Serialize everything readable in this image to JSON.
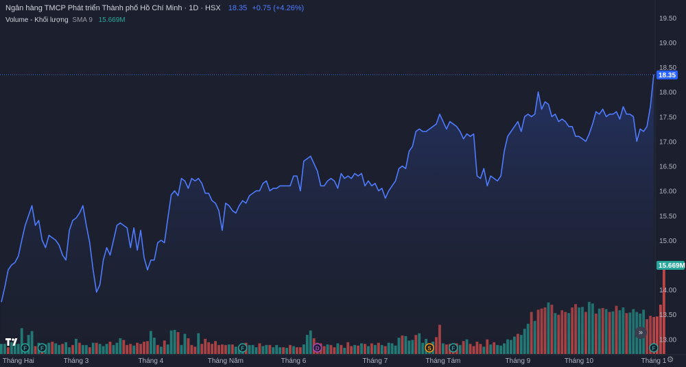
{
  "header": {
    "title": "Ngân hàng TMCP Phát triển Thành phố Hồ Chí Minh · 1D · HSX",
    "last_price": "18.35",
    "change": "+0.75 (+4.26%)"
  },
  "volume_legend": {
    "label": "Volume - Khối lượng",
    "indicator": "SMA 9",
    "value": "15.669M"
  },
  "price_badge": "18.35",
  "volume_badge": "15.669M",
  "colors": {
    "background": "#1c202e",
    "line": "#4f7cff",
    "area_top": "#283a78",
    "volume_up": "#26a69a",
    "volume_down": "#ef5350",
    "badge_price": "#2962ff",
    "badge_volume": "#26a69a",
    "axis_text": "#b2b5be"
  },
  "icons": {
    "logo": "tradingview-logo-icon",
    "scroll": "double-chevron-right-icon",
    "settings": "gear-icon"
  },
  "events": [
    {
      "label": "F",
      "color": "#26a69a",
      "x": "2024-01-22"
    },
    {
      "label": "F",
      "color": "#26a69a",
      "x": "2024-01-30"
    },
    {
      "label": "F",
      "color": "#26a69a",
      "x": "2024-04-29"
    },
    {
      "label": "D",
      "color": "#ab47bc",
      "x": "2024-06-03"
    },
    {
      "label": "S",
      "color": "#ff9800",
      "x": "2024-07-22"
    },
    {
      "label": "F",
      "color": "#26a69a",
      "x": "2024-07-31"
    },
    {
      "label": "F",
      "color": "#26a69a",
      "x": "2024-12-30"
    }
  ],
  "chart_data": {
    "type": "line",
    "x_axis_ticks": [
      "Tháng Hai",
      "Tháng 3",
      "Tháng 4",
      "Tháng Năm",
      "Tháng 6",
      "Tháng 7",
      "Tháng Tám",
      "Tháng 9",
      "Tháng 10",
      "Tháng 1"
    ],
    "y_axis_ticks": [
      "19.50",
      "19.00",
      "18.50",
      "18.00",
      "17.50",
      "17.00",
      "16.50",
      "16.00",
      "15.50",
      "15.00",
      "14.50",
      "14.00",
      "13.50",
      "13.00"
    ],
    "ylim": [
      12.7,
      19.72
    ],
    "grid": false,
    "series": [
      {
        "values": [
          13.75,
          14.05,
          14.4,
          14.5,
          14.55,
          14.68,
          15.0,
          15.3,
          15.5,
          15.7,
          15.3,
          15.4,
          15.0,
          14.85,
          15.1,
          15.05,
          15.0,
          14.9,
          14.7,
          14.6,
          15.2,
          15.4,
          15.45,
          15.55,
          15.7,
          15.3,
          14.95,
          14.4,
          13.95,
          14.1,
          14.6,
          14.85,
          14.7,
          15.0,
          15.3,
          15.35,
          15.3,
          15.25,
          14.85,
          15.25,
          14.8,
          15.2,
          14.65,
          14.4,
          14.6,
          14.6,
          14.95,
          15.0,
          14.95,
          15.45,
          15.92,
          16.0,
          15.9,
          16.25,
          16.2,
          16.05,
          16.25,
          16.2,
          16.25,
          16.15,
          15.95,
          15.95,
          15.8,
          15.75,
          15.6,
          15.2,
          15.75,
          15.7,
          15.6,
          15.55,
          15.7,
          15.8,
          15.75,
          15.9,
          15.95,
          16.0,
          16.0,
          16.15,
          16.2,
          16.0,
          16.05,
          16.05,
          16.1,
          16.1,
          16.1,
          16.1,
          16.3,
          16.3,
          16.0,
          16.6,
          16.65,
          16.7,
          16.55,
          16.4,
          16.1,
          16.1,
          16.2,
          16.25,
          16.2,
          16.05,
          16.35,
          16.25,
          16.3,
          16.25,
          16.35,
          16.3,
          16.35,
          16.1,
          16.2,
          16.1,
          16.15,
          16.0,
          16.05,
          15.85,
          16.0,
          16.1,
          16.2,
          16.45,
          16.5,
          16.45,
          16.8,
          16.9,
          17.2,
          17.25,
          17.2,
          17.2,
          17.25,
          17.3,
          17.35,
          17.55,
          17.4,
          17.25,
          17.4,
          17.35,
          17.3,
          17.2,
          17.05,
          17.15,
          17.1,
          17.15,
          16.3,
          16.25,
          16.45,
          16.1,
          16.3,
          16.25,
          16.2,
          16.3,
          16.8,
          17.1,
          17.2,
          17.3,
          17.4,
          17.2,
          17.5,
          17.55,
          17.5,
          17.55,
          18.0,
          17.65,
          17.8,
          17.75,
          17.5,
          17.55,
          17.4,
          17.45,
          17.4,
          17.3,
          17.3,
          17.1,
          17.1,
          17.05,
          17.0,
          17.15,
          17.35,
          17.6,
          17.55,
          17.65,
          17.5,
          17.55,
          17.55,
          17.6,
          17.45,
          17.7,
          17.55,
          17.55,
          17.5,
          17.0,
          17.25,
          17.2,
          17.3,
          17.7,
          18.35
        ]
      }
    ],
    "volume_max_millions": 16,
    "volume_millions": [
      1.8,
      1.8,
      1.2,
      2.1,
      1.8,
      1.8,
      4.6,
      1.6,
      3.4,
      4.1,
      1.4,
      2.0,
      1.8,
      1.7,
      2.0,
      2.2,
      1.9,
      1.6,
      1.8,
      2.1,
      1.2,
      1.6,
      2.7,
      2.0,
      1.6,
      1.6,
      1.2,
      2.0,
      2.0,
      1.8,
      1.4,
      1.8,
      2.2,
      1.6,
      2.0,
      2.8,
      2.5,
      1.6,
      1.8,
      1.5,
      2.0,
      1.8,
      2.2,
      2.3,
      4.1,
      2.9,
      1.6,
      1.3,
      2.4,
      1.7,
      4.2,
      4.3,
      3.9,
      1.6,
      3.6,
      2.8,
      1.6,
      1.3,
      3.7,
      1.8,
      2.7,
      2.1,
      1.8,
      2.3,
      1.6,
      1.7,
      1.6,
      1.7,
      1.7,
      1.3,
      1.3,
      1.7,
      2.0,
      1.6,
      1.6,
      1.2,
      1.9,
      1.4,
      1.6,
      1.6,
      1.2,
      1.6,
      1.2,
      1.2,
      1.1,
      1.6,
      1.4,
      1.2,
      1.2,
      1.7,
      3.4,
      4.2,
      2.8,
      2.0,
      1.9,
      1.4,
      1.7,
      1.6,
      1.2,
      1.9,
      1.6,
      1.1,
      2.1,
      1.4,
      1.6,
      1.5,
      1.9,
      1.8,
      1.4,
      1.9,
      1.6,
      2.0,
      1.6,
      1.4,
      2.0,
      1.9,
      1.5,
      2.9,
      3.3,
      3.2,
      2.4,
      2.5,
      3.4,
      3.7,
      2.0,
      2.7,
      1.7,
      2.2,
      3.0,
      5.2,
      1.9,
      1.7,
      1.8,
      1.8,
      1.9,
      1.6,
      2.3,
      2.6,
      1.8,
      1.4,
      2.2,
      1.8,
      1.3,
      2.6,
      1.7,
      2.1,
      1.6,
      1.5,
      1.9,
      2.6,
      2.5,
      3.1,
      3.6,
      3.4,
      4.5,
      5.4,
      7.5,
      5.9,
      7.9,
      8.1,
      8.3,
      9.2,
      8.8,
      7.3,
      7.0,
      7.8,
      7.5,
      7.3,
      8.3,
      8.9,
      8.3,
      8.4,
      7.5,
      9.3,
      9.0,
      7.2,
      8.1,
      8.2,
      8.0,
      7.5,
      7.6,
      8.6,
      7.8,
      8.3,
      7.3,
      7.4,
      8.0,
      7.5,
      7.2,
      7.9,
      6.2,
      6.8,
      6.6,
      6.7,
      8.8,
      16.0
    ],
    "volume_up": [
      true,
      true,
      false,
      true,
      true,
      true,
      true,
      true,
      true,
      true,
      false,
      true,
      false,
      true,
      true,
      false,
      true,
      true,
      false,
      true,
      true,
      false,
      true,
      false,
      true,
      true,
      false,
      true,
      false,
      true,
      true,
      true,
      false,
      true,
      true,
      true,
      false,
      false,
      false,
      true,
      false,
      false,
      false,
      false,
      true,
      true,
      false,
      true,
      false,
      true,
      true,
      true,
      false,
      true,
      true,
      false,
      false,
      false,
      true,
      false,
      false,
      false,
      false,
      false,
      false,
      false,
      false,
      true,
      false,
      true,
      true,
      true,
      false,
      true,
      true,
      true,
      false,
      true,
      true,
      false,
      true,
      true,
      true,
      false,
      true,
      false,
      true,
      false,
      false,
      true,
      true,
      true,
      false,
      false,
      false,
      false,
      true,
      false,
      false,
      true,
      false,
      true,
      false,
      false,
      true,
      false,
      true,
      false,
      true,
      false,
      true,
      false,
      true,
      false,
      true,
      true,
      true,
      true,
      false,
      true,
      true,
      true,
      false,
      true,
      true,
      true,
      true,
      true,
      false,
      false,
      true,
      false,
      false,
      false,
      false,
      true,
      false,
      true,
      false,
      false,
      false,
      false,
      true,
      false,
      true,
      false,
      true,
      true,
      true,
      true,
      true,
      true,
      false,
      true,
      true,
      true,
      false,
      true,
      false,
      false,
      false,
      true,
      false,
      true,
      false,
      false,
      false,
      true,
      false,
      false,
      true,
      true,
      false,
      true,
      true,
      false,
      true,
      false,
      true,
      false,
      true,
      false,
      true,
      true,
      false,
      true,
      true,
      true,
      true,
      true
    ]
  }
}
